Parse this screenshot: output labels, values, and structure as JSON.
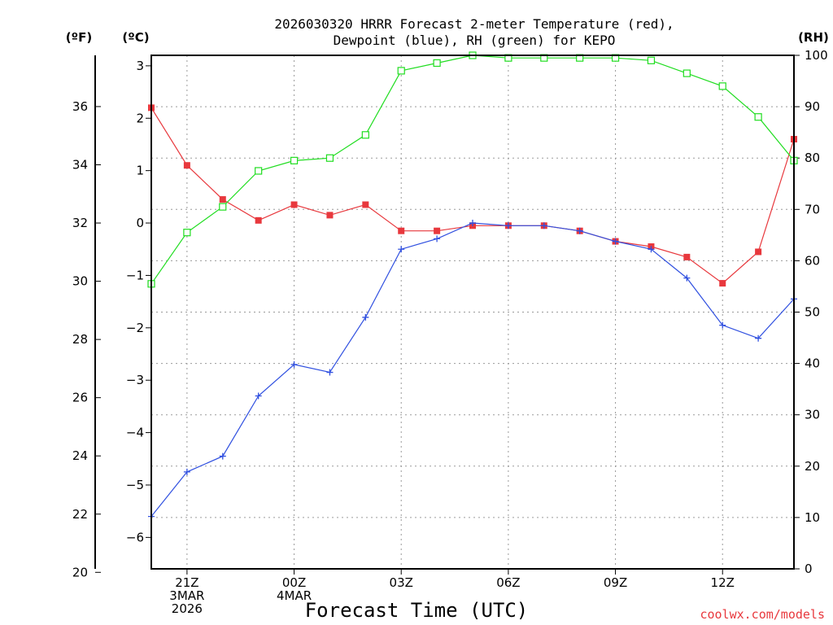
{
  "chart_data": {
    "type": "line",
    "title_line1": "2026030320 HRRR Forecast 2-meter Temperature (red),",
    "title_line2": "Dewpoint (blue), RH (green) for KEPO",
    "xlabel": "Forecast Time (UTC)",
    "credit": "coolwx.com/models",
    "unit_f": "(ºF)",
    "unit_c": "(ºC)",
    "unit_rh": "(RH)",
    "x_ticks": [
      {
        "hour": 1,
        "lines": [
          "21Z",
          "3MAR",
          "2026"
        ]
      },
      {
        "hour": 4,
        "lines": [
          "00Z",
          "4MAR"
        ]
      },
      {
        "hour": 7,
        "lines": [
          "03Z"
        ]
      },
      {
        "hour": 10,
        "lines": [
          "06Z"
        ]
      },
      {
        "hour": 13,
        "lines": [
          "09Z"
        ]
      },
      {
        "hour": 16,
        "lines": [
          "12Z"
        ]
      }
    ],
    "x_range": [
      0,
      18
    ],
    "c_range": [
      -6.6,
      3.2
    ],
    "c_ticks": [
      "3",
      "2",
      "1",
      "0",
      "−1",
      "−2",
      "−3",
      "−4",
      "−5",
      "−6"
    ],
    "f_ticks": [
      "36",
      "34",
      "32",
      "30",
      "28",
      "26",
      "24",
      "22",
      "20"
    ],
    "rh_range": [
      0,
      100
    ],
    "rh_ticks": [
      "100",
      "90",
      "80",
      "70",
      "60",
      "50",
      "40",
      "30",
      "20",
      "10",
      "0"
    ],
    "series": [
      {
        "name": "Temperature",
        "unit": "C",
        "color": "#e8383d",
        "marker": "filled-square",
        "values": [
          2.2,
          1.1,
          0.45,
          0.05,
          0.35,
          0.15,
          0.35,
          -0.15,
          -0.15,
          -0.05,
          -0.05,
          -0.05,
          -0.15,
          -0.35,
          -0.45,
          -0.65,
          -1.15,
          -0.55,
          1.6
        ]
      },
      {
        "name": "Dewpoint",
        "unit": "C",
        "color": "#3050e0",
        "marker": "plus",
        "values": [
          -5.6,
          -4.75,
          -4.45,
          -3.3,
          -2.7,
          -2.85,
          -1.8,
          -0.5,
          -0.3,
          0.0,
          -0.05,
          -0.05,
          -0.15,
          -0.35,
          -0.5,
          -1.05,
          -1.95,
          -2.2,
          -1.45
        ]
      },
      {
        "name": "RH",
        "unit": "%",
        "color": "#20dd20",
        "marker": "open-square",
        "values": [
          55.5,
          65.5,
          70.5,
          77.5,
          79.5,
          80.0,
          84.5,
          97.0,
          98.5,
          100.0,
          99.5,
          99.5,
          99.5,
          99.5,
          99.0,
          96.5,
          94.0,
          88.0,
          79.5
        ]
      }
    ]
  }
}
